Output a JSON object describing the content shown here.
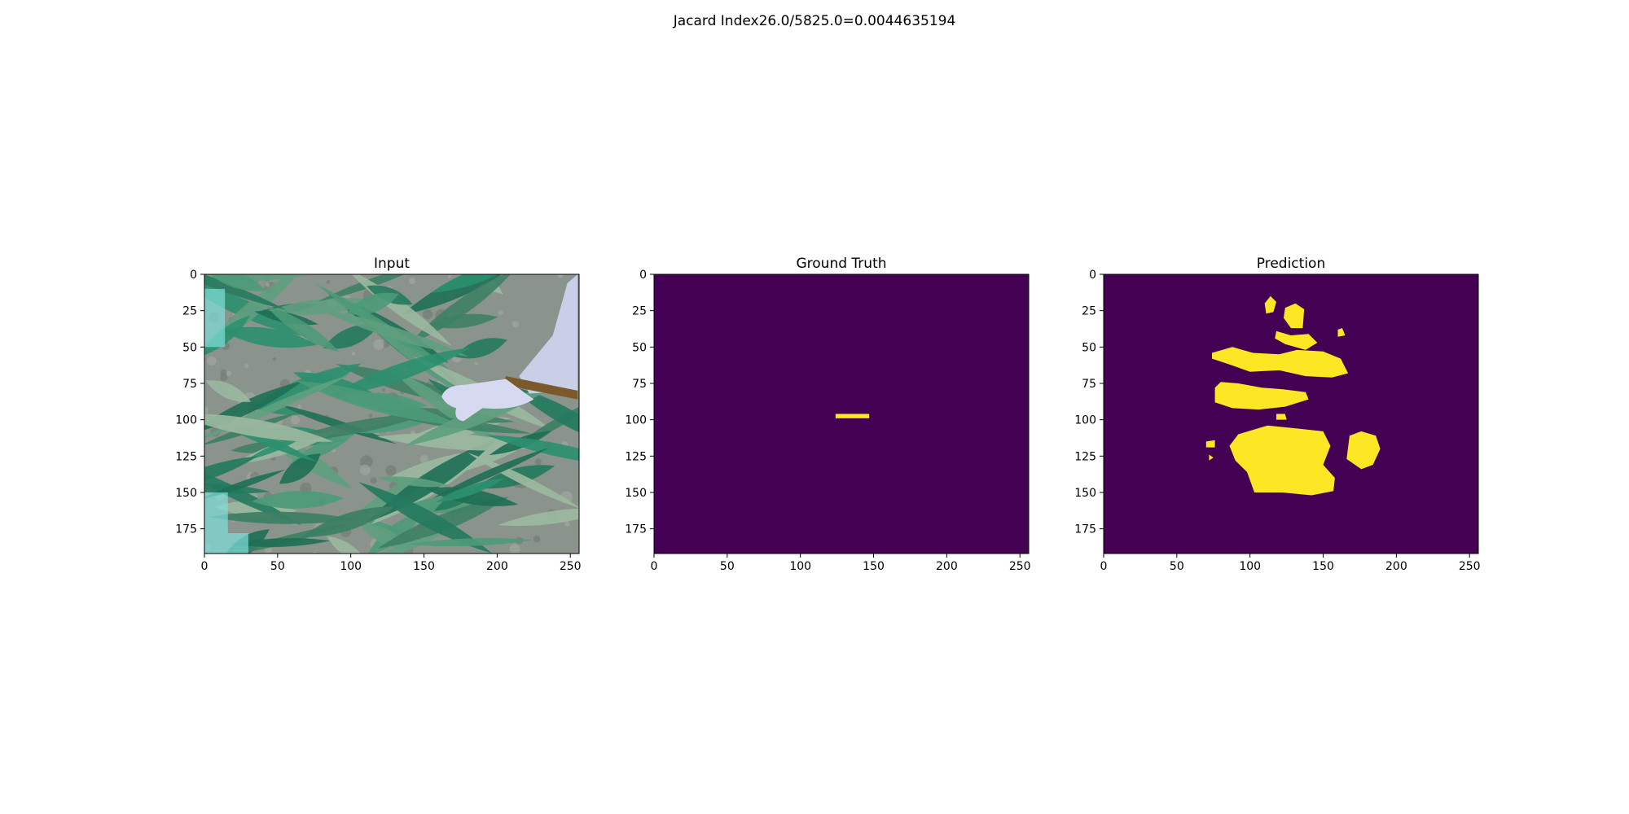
{
  "figure": {
    "suptitle": "Jacard Index26.0/5825.0=0.0044635194",
    "colors": {
      "background": "#440154",
      "foreground": "#fde725"
    }
  },
  "chart_data": [
    {
      "type": "heatmap",
      "title": "Input",
      "xlim": [
        0,
        256
      ],
      "ylim": [
        192,
        0
      ],
      "xticks": [
        0,
        50,
        100,
        150,
        200,
        250
      ],
      "yticks": [
        0,
        25,
        50,
        75,
        100,
        125,
        150,
        175
      ],
      "content": "photo-corn-field-with-hand",
      "photo_features": {
        "hand": {
          "x": [
            160,
            256
          ],
          "y": [
            0,
            100
          ]
        }
      }
    },
    {
      "type": "heatmap",
      "title": "Ground Truth",
      "xlim": [
        0,
        256
      ],
      "ylim": [
        192,
        0
      ],
      "xticks": [
        0,
        50,
        100,
        150,
        200,
        250
      ],
      "yticks": [
        0,
        25,
        50,
        75,
        100,
        125,
        150,
        175
      ],
      "colormap": "viridis-binary",
      "foreground_regions": [
        {
          "x": [
            124,
            147
          ],
          "y": [
            96,
            99
          ]
        }
      ]
    },
    {
      "type": "heatmap",
      "title": "Prediction",
      "xlim": [
        0,
        256
      ],
      "ylim": [
        192,
        0
      ],
      "xticks": [
        0,
        50,
        100,
        150,
        200,
        250
      ],
      "yticks": [
        0,
        25,
        50,
        75,
        100,
        125,
        150,
        175
      ],
      "colormap": "viridis-binary",
      "foreground_regions": [
        {
          "points": [
            [
              110,
              20
            ],
            [
              114,
              15
            ],
            [
              118,
              19
            ],
            [
              116,
              26
            ],
            [
              111,
              27
            ]
          ]
        },
        {
          "points": [
            [
              124,
              23
            ],
            [
              131,
              20
            ],
            [
              137,
              24
            ],
            [
              136,
              37
            ],
            [
              128,
              37
            ],
            [
              123,
              30
            ]
          ]
        },
        {
          "points": [
            [
              160,
              38
            ],
            [
              163,
              37
            ],
            [
              165,
              42
            ],
            [
              160,
              43
            ]
          ]
        },
        {
          "points": [
            [
              118,
              39
            ],
            [
              128,
              42
            ],
            [
              140,
              41
            ],
            [
              146,
              47
            ],
            [
              138,
              52
            ],
            [
              124,
              48
            ],
            [
              117,
              44
            ]
          ]
        },
        {
          "points": [
            [
              74,
              54
            ],
            [
              88,
              50
            ],
            [
              102,
              54
            ],
            [
              120,
              55
            ],
            [
              132,
              52
            ],
            [
              150,
              53
            ],
            [
              162,
              58
            ],
            [
              167,
              68
            ],
            [
              156,
              71
            ],
            [
              138,
              70
            ],
            [
              120,
              66
            ],
            [
              100,
              67
            ],
            [
              86,
              62
            ],
            [
              74,
              58
            ]
          ]
        },
        {
          "points": [
            [
              76,
              78
            ],
            [
              80,
              74
            ],
            [
              92,
              75
            ],
            [
              108,
              78
            ],
            [
              122,
              79
            ],
            [
              138,
              81
            ],
            [
              140,
              86
            ],
            [
              124,
              91
            ],
            [
              106,
              93
            ],
            [
              88,
              92
            ],
            [
              76,
              88
            ]
          ]
        },
        {
          "points": [
            [
              118,
              96
            ],
            [
              124,
              96
            ],
            [
              125,
              100
            ],
            [
              118,
              100
            ]
          ]
        },
        {
          "points": [
            [
              70,
              115
            ],
            [
              76,
              114
            ],
            [
              76,
              119
            ],
            [
              70,
              119
            ]
          ]
        },
        {
          "points": [
            [
              72,
              124
            ],
            [
              75,
              126
            ],
            [
              72,
              128
            ]
          ]
        },
        {
          "points": [
            [
              92,
              110
            ],
            [
              112,
              104
            ],
            [
              132,
              106
            ],
            [
              150,
              108
            ],
            [
              155,
              118
            ],
            [
              150,
              131
            ],
            [
              158,
              140
            ],
            [
              157,
              149
            ],
            [
              142,
              152
            ],
            [
              122,
              150
            ],
            [
              103,
              150
            ],
            [
              98,
              136
            ],
            [
              90,
              128
            ],
            [
              86,
              118
            ]
          ]
        },
        {
          "points": [
            [
              168,
              111
            ],
            [
              176,
              108
            ],
            [
              186,
              111
            ],
            [
              189,
              120
            ],
            [
              184,
              131
            ],
            [
              176,
              134
            ],
            [
              166,
              127
            ]
          ]
        }
      ]
    }
  ]
}
